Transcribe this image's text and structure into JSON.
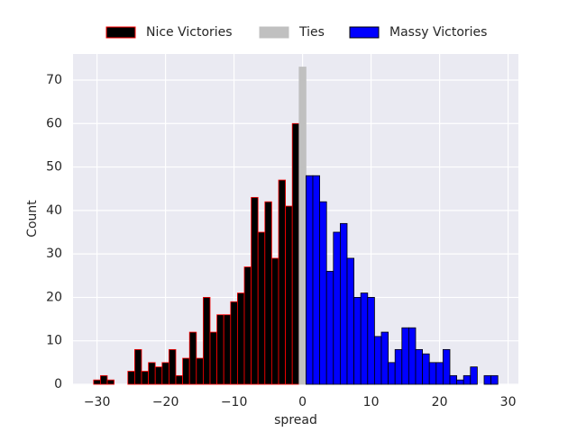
{
  "chart_data": {
    "type": "histogram",
    "x_label": "spread",
    "y_label": "Count",
    "legend_position": "top",
    "grid": true,
    "series": [
      {
        "name": "Nice Victories",
        "color": "#000000",
        "edgecolor": "#ff0000",
        "bins": [
          -30.5,
          -29.5,
          -28.5,
          -27.5,
          -26.5,
          -25.5,
          -24.5,
          -23.5,
          -22.5,
          -21.5,
          -20.5,
          -19.5,
          -18.5,
          -17.5,
          -16.5,
          -15.5,
          -14.5,
          -13.5,
          -12.5,
          -11.5,
          -10.5,
          -9.5,
          -8.5,
          -7.5,
          -6.5,
          -5.5,
          -4.5,
          -3.5,
          -2.5,
          -1.5,
          -0.5
        ],
        "values": [
          1,
          2,
          1,
          0,
          0,
          3,
          8,
          3,
          5,
          4,
          5,
          8,
          2,
          6,
          12,
          6,
          20,
          12,
          16,
          16,
          19,
          21,
          27,
          43,
          35,
          42,
          29,
          47,
          41,
          60
        ]
      },
      {
        "name": "Ties",
        "color": "#c0c0c0",
        "edgecolor": "#c0c0c0",
        "bins": [
          -0.5,
          0.5
        ],
        "values": [
          73
        ]
      },
      {
        "name": "Massy Victories",
        "color": "#0000ff",
        "edgecolor": "#000000",
        "bins": [
          0.5,
          1.5,
          2.5,
          3.5,
          4.5,
          5.5,
          6.5,
          7.5,
          8.5,
          9.5,
          10.5,
          11.5,
          12.5,
          13.5,
          14.5,
          15.5,
          16.5,
          17.5,
          18.5,
          19.5,
          20.5,
          21.5,
          22.5,
          23.5,
          24.5,
          25.5,
          26.5,
          27.5,
          28.5
        ],
        "values": [
          48,
          48,
          42,
          26,
          35,
          37,
          29,
          20,
          21,
          20,
          11,
          12,
          5,
          8,
          13,
          13,
          8,
          7,
          5,
          5,
          8,
          2,
          1,
          2,
          4,
          0,
          2,
          2
        ]
      }
    ],
    "xlim": [
      -33.5,
      31.5
    ],
    "ylim": [
      0,
      76
    ],
    "xticks": [
      {
        "value": -30,
        "label": "−30"
      },
      {
        "value": -20,
        "label": "−20"
      },
      {
        "value": -10,
        "label": "−10"
      },
      0,
      10,
      20,
      30
    ],
    "yticks": [
      0,
      10,
      20,
      30,
      40,
      50,
      60,
      70
    ]
  }
}
